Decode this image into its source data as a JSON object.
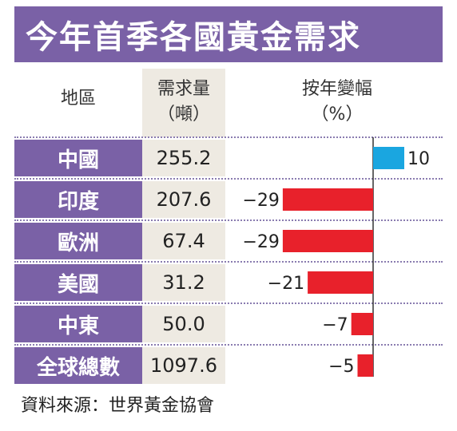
{
  "title": "今年首季各國黃金需求",
  "headers": {
    "region": "地區",
    "demand_line1": "需求量",
    "demand_line2": "（噸）",
    "change_line1": "按年變幅",
    "change_line2": "（%）"
  },
  "rows": [
    {
      "region": "中國",
      "demand": "255.2",
      "change_label": "10"
    },
    {
      "region": "印度",
      "demand": "207.6",
      "change_label": "−29"
    },
    {
      "region": "歐洲",
      "demand": "67.4",
      "change_label": "−29"
    },
    {
      "region": "美國",
      "demand": "31.2",
      "change_label": "−21"
    },
    {
      "region": "中東",
      "demand": "50.0",
      "change_label": "−7"
    },
    {
      "region": "全球總數",
      "demand": "1097.6",
      "change_label": "−5"
    }
  ],
  "source": "資料來源：世界黃金協會",
  "colors": {
    "header_purple": "#7a61a6",
    "positive_bar": "#1aa6e0",
    "negative_bar": "#e8212b",
    "demand_bg": "#eeeae2"
  },
  "chart_data": {
    "type": "bar",
    "orientation": "horizontal",
    "categories": [
      "中國",
      "印度",
      "歐洲",
      "美國",
      "中東",
      "全球總數"
    ],
    "series": [
      {
        "values": [
          10,
          -29,
          -29,
          -21,
          -7,
          -5
        ]
      }
    ],
    "demand_tonnes": [
      255.2,
      207.6,
      67.4,
      31.2,
      50.0,
      1097.6
    ]
  }
}
